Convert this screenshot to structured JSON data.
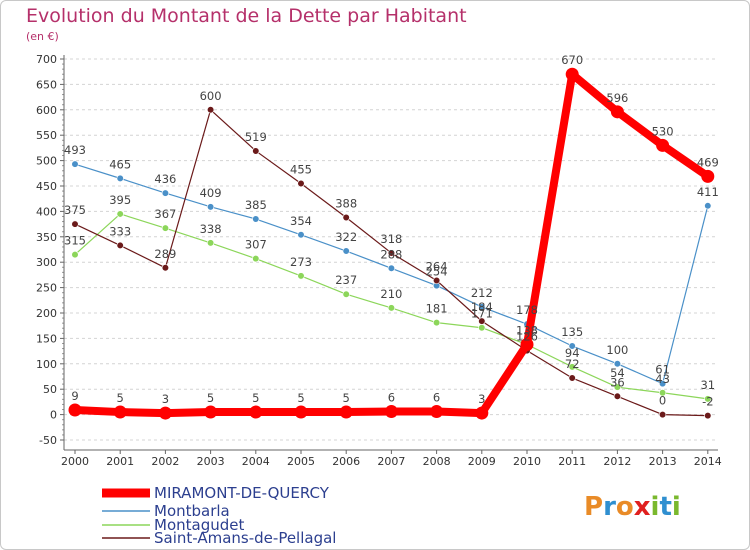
{
  "chart_data": {
    "type": "line",
    "title": "Evolution du Montant de la Dette par Habitant",
    "unit_label": "(en €)",
    "x": [
      "2000",
      "2001",
      "2002",
      "2003",
      "2004",
      "2005",
      "2006",
      "2007",
      "2008",
      "2009",
      "2010",
      "2011",
      "2012",
      "2013",
      "2014"
    ],
    "y_ticks": [
      "700",
      "650",
      "600",
      "550",
      "500",
      "450",
      "400",
      "350",
      "300",
      "250",
      "200",
      "150",
      "100",
      "50",
      "0",
      "-50"
    ],
    "ylim": [
      -50,
      700
    ],
    "grid": "horizontal dashed",
    "legend_position": "bottom-left",
    "series": [
      {
        "name": "MIRAMONT-DE-QUERCY",
        "color": "#ff0000",
        "values": [
          9,
          5,
          3,
          5,
          5,
          5,
          5,
          6,
          6,
          3,
          138,
          670,
          596,
          530,
          469
        ],
        "labels": [
          "9",
          "5",
          "3",
          "5",
          "5",
          "5",
          "5",
          "6",
          "6",
          "3",
          "",
          "670",
          "596",
          "530",
          "469"
        ]
      },
      {
        "name": "Montbarla",
        "color": "#4a90c8",
        "values": [
          493,
          465,
          436,
          409,
          385,
          354,
          322,
          288,
          254,
          212,
          178,
          135,
          100,
          61,
          411
        ],
        "labels": [
          "493",
          "465",
          "436",
          "409",
          "385",
          "354",
          "322",
          "288",
          "254",
          "212",
          "178",
          "135",
          "100",
          "61",
          "411"
        ]
      },
      {
        "name": "Montagudet",
        "color": "#8cd65a",
        "values": [
          315,
          395,
          367,
          338,
          307,
          273,
          237,
          210,
          181,
          171,
          138,
          94,
          54,
          43,
          31
        ],
        "labels": [
          "315",
          "395",
          "367",
          "338",
          "307",
          "273",
          "237",
          "210",
          "181",
          "171",
          "138",
          "94",
          "54",
          "43",
          "31"
        ]
      },
      {
        "name": "Saint-Amans-de-Pellagal",
        "color": "#6b1a1a",
        "values": [
          375,
          333,
          289,
          600,
          519,
          455,
          388,
          318,
          264,
          184,
          126,
          72,
          36,
          0,
          -2
        ],
        "labels": [
          "375",
          "333",
          "289",
          "600",
          "519",
          "455",
          "388",
          "318",
          "264",
          "184",
          "126",
          "72",
          "36",
          "0",
          "-2"
        ]
      }
    ]
  },
  "brand": {
    "letters": [
      "P",
      "r",
      "o",
      "x",
      "i",
      "t",
      "i"
    ],
    "colors": [
      "#e98b27",
      "#2f8fd0",
      "#e98b27",
      "#e0201f",
      "#7ab82e",
      "#2f8fd0",
      "#7ab82e"
    ]
  }
}
